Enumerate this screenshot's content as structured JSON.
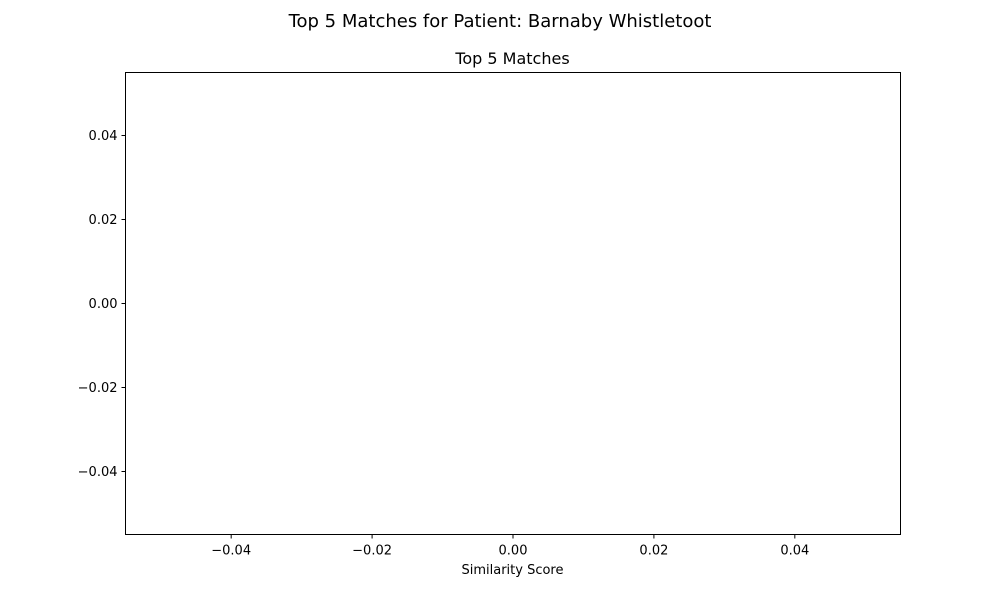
{
  "chart_data": {
    "type": "bar",
    "orientation": "horizontal",
    "suptitle": "Top 5 Matches for Patient: Barnaby Whistletoot",
    "title": "Top 5 Matches",
    "xlabel": "Similarity Score",
    "ylabel": "",
    "categories": [],
    "values": [],
    "xlim": [
      -0.055,
      0.055
    ],
    "ylim": [
      -0.055,
      0.055
    ],
    "xticks": [
      -0.04,
      -0.02,
      0.0,
      0.02,
      0.04
    ],
    "yticks": [
      0.04,
      0.02,
      0.0,
      -0.02,
      -0.04
    ],
    "xtick_labels": [
      "−0.04",
      "−0.02",
      "0.00",
      "0.02",
      "0.04"
    ],
    "ytick_labels": [
      "0.04",
      "0.02",
      "0.00",
      "−0.02",
      "−0.04"
    ],
    "grid": false,
    "legend": "none"
  }
}
